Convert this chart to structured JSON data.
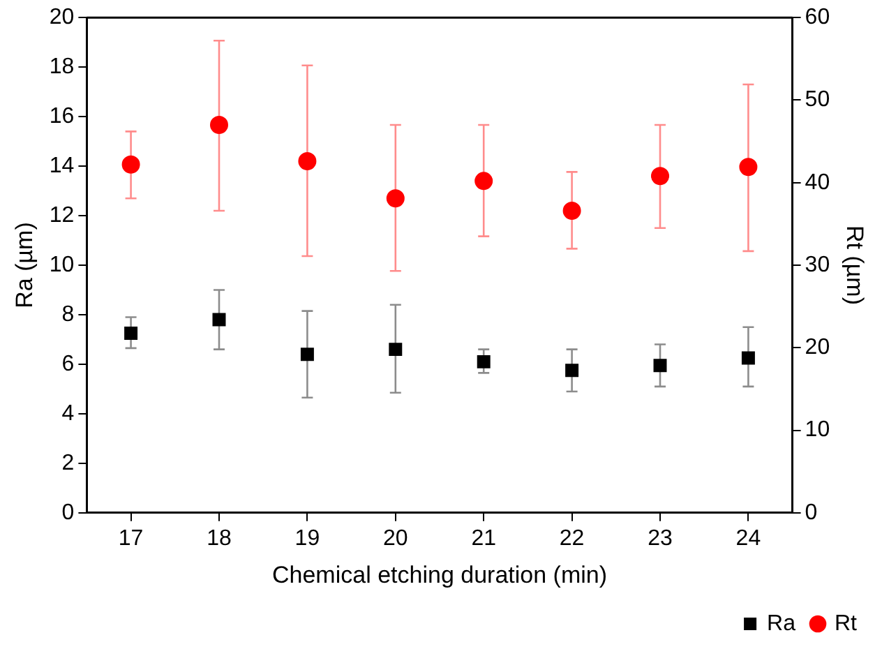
{
  "chart_data": {
    "type": "scatter",
    "xlabel": "Chemical etching duration (min)",
    "ylabel": "Ra (µm)",
    "y2label": "Rt (µm)",
    "x": [
      17,
      18,
      19,
      20,
      21,
      22,
      23,
      24
    ],
    "xlim": [
      16.5,
      24.5
    ],
    "xticks": [
      17,
      18,
      19,
      20,
      21,
      22,
      23,
      24
    ],
    "ylim": [
      0,
      20
    ],
    "yticks": [
      0,
      2,
      4,
      6,
      8,
      10,
      12,
      14,
      16,
      18,
      20
    ],
    "y2lim": [
      0,
      60
    ],
    "y2ticks": [
      0,
      10,
      20,
      30,
      40,
      50,
      60
    ],
    "grid": false,
    "legend": "bottom right",
    "series": [
      {
        "name": "Ra",
        "color": "#000000",
        "marker": "square",
        "values": [
          7.25,
          7.8,
          6.4,
          6.6,
          6.1,
          5.75,
          5.95,
          6.25
        ],
        "errors": [
          [
            6.65,
            7.9
          ],
          [
            6.6,
            9.0
          ],
          [
            4.65,
            8.15
          ],
          [
            4.85,
            8.4
          ],
          [
            5.65,
            6.6
          ],
          [
            4.9,
            6.6
          ],
          [
            5.1,
            6.8
          ],
          [
            5.1,
            7.5
          ]
        ]
      },
      {
        "name": "Rt",
        "color": "#ff0000",
        "marker": "circle",
        "axis": "y2",
        "values": [
          42.2,
          47.0,
          42.6,
          38.1,
          40.2,
          36.6,
          40.8,
          41.9
        ],
        "errors": [
          [
            38.1,
            46.2
          ],
          [
            36.6,
            57.2
          ],
          [
            31.1,
            54.2
          ],
          [
            29.3,
            47.0
          ],
          [
            33.5,
            47.0
          ],
          [
            32.0,
            41.3
          ],
          [
            34.5,
            47.0
          ],
          [
            31.7,
            51.9
          ]
        ]
      }
    ]
  }
}
